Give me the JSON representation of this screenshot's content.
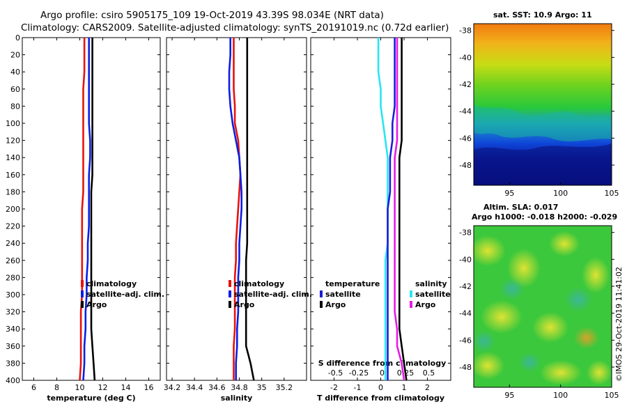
{
  "title": {
    "line1": "Argo profile: csiro 5905175_109 19-Oct-2019 43.39S 98.034E (NRT data)",
    "line2": "Climatology: CARS2009. Satellite-adjusted climatology: synTS_20191019.nc (0.72d earlier)"
  },
  "credit": "©IMOS 29-Oct-2019 11:41:02",
  "colors": {
    "climatology": "#e8120c",
    "satellite": "#0a1ee6",
    "argo": "#000000",
    "t_sat_diff": "#26e6f0",
    "s_sat_diff": "#1c1cd8",
    "t_argo_diff": "#e61ce6",
    "s_argo_diff": "#000000"
  },
  "chart_data": [
    {
      "id": "temperature",
      "type": "line",
      "xlabel": "temperature (deg C)",
      "ylabel": "",
      "xlim": [
        5,
        17
      ],
      "ylim": [
        400,
        0
      ],
      "xticks": [
        "6",
        "8",
        "10",
        "12",
        "14",
        "16"
      ],
      "xtick_values": [
        6,
        8,
        10,
        12,
        14,
        16
      ],
      "yticks": [
        "0",
        "20",
        "40",
        "60",
        "80",
        "100",
        "120",
        "140",
        "160",
        "180",
        "200",
        "220",
        "240",
        "260",
        "280",
        "300",
        "320",
        "340",
        "360",
        "380",
        "400"
      ],
      "depth": [
        0,
        20,
        40,
        60,
        80,
        100,
        120,
        140,
        160,
        180,
        200,
        220,
        240,
        260,
        280,
        300,
        320,
        340,
        360,
        380,
        400
      ],
      "series": [
        {
          "name": "climatology",
          "color": "#e8120c",
          "values": [
            10.4,
            10.4,
            10.4,
            10.3,
            10.3,
            10.3,
            10.3,
            10.3,
            10.3,
            10.3,
            10.2,
            10.2,
            10.2,
            10.2,
            10.2,
            10.2,
            10.1,
            10.1,
            10.1,
            10.1,
            10.0
          ]
        },
        {
          "name": "satellite-adj. clim.",
          "color": "#0a1ee6",
          "values": [
            10.8,
            10.8,
            10.8,
            10.8,
            10.8,
            10.8,
            10.9,
            10.9,
            10.8,
            10.8,
            10.8,
            10.8,
            10.7,
            10.7,
            10.6,
            10.6,
            10.5,
            10.5,
            10.4,
            10.4,
            10.3
          ]
        },
        {
          "name": "Argo",
          "color": "#000000",
          "values": [
            11.1,
            11.1,
            11.1,
            11.1,
            11.1,
            11.1,
            11.1,
            11.1,
            11.1,
            11.0,
            11.0,
            11.0,
            11.0,
            11.0,
            11.0,
            11.0,
            11.0,
            11.0,
            11.1,
            11.2,
            11.3
          ]
        }
      ],
      "legend": [
        "climatology",
        "satellite-adj. clim.",
        "Argo"
      ]
    },
    {
      "id": "salinity",
      "type": "line",
      "xlabel": "salinity",
      "xlim": [
        34.15,
        35.4
      ],
      "ylim": [
        400,
        0
      ],
      "xticks": [
        "34.2",
        "34.4",
        "34.6",
        "34.8",
        "35",
        "35.2"
      ],
      "xtick_values": [
        34.2,
        34.4,
        34.6,
        34.8,
        35.0,
        35.2
      ],
      "depth": [
        0,
        20,
        40,
        60,
        80,
        100,
        120,
        140,
        160,
        180,
        200,
        220,
        240,
        260,
        280,
        300,
        320,
        340,
        360,
        380,
        400
      ],
      "series": [
        {
          "name": "climatology",
          "color": "#e8120c",
          "values": [
            34.75,
            34.75,
            34.75,
            34.75,
            34.76,
            34.76,
            34.79,
            34.8,
            34.81,
            34.8,
            34.79,
            34.78,
            34.77,
            34.77,
            34.76,
            34.76,
            34.76,
            34.76,
            34.75,
            34.75,
            34.75
          ]
        },
        {
          "name": "satellite-adj. clim.",
          "color": "#0a1ee6",
          "values": [
            34.72,
            34.72,
            34.71,
            34.71,
            34.72,
            34.74,
            34.77,
            34.8,
            34.81,
            34.82,
            34.82,
            34.81,
            34.8,
            34.8,
            34.79,
            34.79,
            34.79,
            34.78,
            34.78,
            34.77,
            34.77
          ]
        },
        {
          "name": "Argo",
          "color": "#000000",
          "values": [
            34.87,
            34.87,
            34.87,
            34.87,
            34.87,
            34.87,
            34.87,
            34.87,
            34.87,
            34.87,
            34.87,
            34.87,
            34.87,
            34.86,
            34.86,
            34.86,
            34.86,
            34.86,
            34.86,
            34.9,
            34.93
          ]
        }
      ],
      "legend": [
        "climatology",
        "satellite-adj. clim.",
        "Argo"
      ]
    },
    {
      "id": "difference",
      "type": "line",
      "xlabel": "T difference from climatology",
      "xlabel_top": "S difference from climatology",
      "xlim": [
        -3,
        3
      ],
      "ylim": [
        400,
        0
      ],
      "xticks": [
        "-2",
        "-1",
        "0",
        "1",
        "2"
      ],
      "xtick_values": [
        -2,
        -1,
        0,
        1,
        2
      ],
      "xticks_top": [
        "-0.5",
        "-0.25",
        "0",
        "0.25",
        "0.5"
      ],
      "xtick_top_values": [
        -2,
        -1,
        0,
        1,
        2
      ],
      "depth": [
        0,
        20,
        40,
        60,
        80,
        100,
        120,
        140,
        160,
        180,
        200,
        220,
        240,
        260,
        280,
        300,
        320,
        340,
        360,
        380,
        400
      ],
      "series": [
        {
          "name": "T satellite",
          "color": "#26e6f0",
          "values": [
            -0.1,
            -0.1,
            -0.1,
            0.0,
            0.0,
            0.1,
            0.2,
            0.3,
            0.3,
            0.3,
            0.3,
            0.3,
            0.3,
            0.2,
            0.2,
            0.2,
            0.2,
            0.2,
            0.2,
            0.2,
            0.2
          ]
        },
        {
          "name": "S satellite",
          "color": "#1c1cd8",
          "values": [
            0.6,
            0.6,
            0.6,
            0.6,
            0.6,
            0.5,
            0.5,
            0.4,
            0.4,
            0.4,
            0.3,
            0.3,
            0.3,
            0.3,
            0.3,
            0.3,
            0.3,
            0.3,
            0.3,
            0.3,
            0.3
          ]
        },
        {
          "name": "T Argo",
          "color": "#e61ce6",
          "values": [
            0.7,
            0.7,
            0.7,
            0.7,
            0.7,
            0.7,
            0.7,
            0.6,
            0.6,
            0.6,
            0.6,
            0.6,
            0.6,
            0.6,
            0.6,
            0.6,
            0.6,
            0.7,
            0.7,
            0.9,
            1.0
          ]
        },
        {
          "name": "S Argo",
          "color": "#000000",
          "values": [
            0.9,
            0.9,
            0.9,
            0.9,
            0.9,
            0.9,
            0.9,
            0.8,
            0.8,
            0.8,
            0.8,
            0.8,
            0.8,
            0.8,
            0.8,
            0.8,
            0.8,
            0.8,
            0.9,
            1.0,
            1.1
          ]
        }
      ],
      "legend": {
        "left_heading": "temperature",
        "right_heading": "salinity",
        "left": [
          "satellite",
          "Argo"
        ],
        "right": [
          "satellite",
          "Argo"
        ]
      }
    },
    {
      "id": "sst_map",
      "type": "heatmap",
      "title": "sat. SST: 10.9 Argo: 11",
      "xlim": [
        91.5,
        105
      ],
      "ylim": [
        -49.5,
        -37.5
      ],
      "xticks": [
        "95",
        "100",
        "105"
      ],
      "xtick_values": [
        95,
        100,
        105
      ],
      "yticks": [
        "-38",
        "-40",
        "-42",
        "-44",
        "-46",
        "-48"
      ],
      "ytick_values": [
        -38,
        -40,
        -42,
        -44,
        -46,
        -48
      ]
    },
    {
      "id": "sla_map",
      "type": "heatmap",
      "title": "Altim. SLA: 0.017",
      "subtitle": "Argo h1000: -0.018 h2000: -0.029",
      "xlim": [
        91.5,
        105
      ],
      "ylim": [
        -49.5,
        -37.5
      ],
      "xticks": [
        "95",
        "100",
        "105"
      ],
      "xtick_values": [
        95,
        100,
        105
      ],
      "yticks": [
        "-38",
        "-40",
        "-42",
        "-44",
        "-46",
        "-48"
      ],
      "ytick_values": [
        -38,
        -40,
        -42,
        -44,
        -46,
        -48
      ]
    }
  ]
}
